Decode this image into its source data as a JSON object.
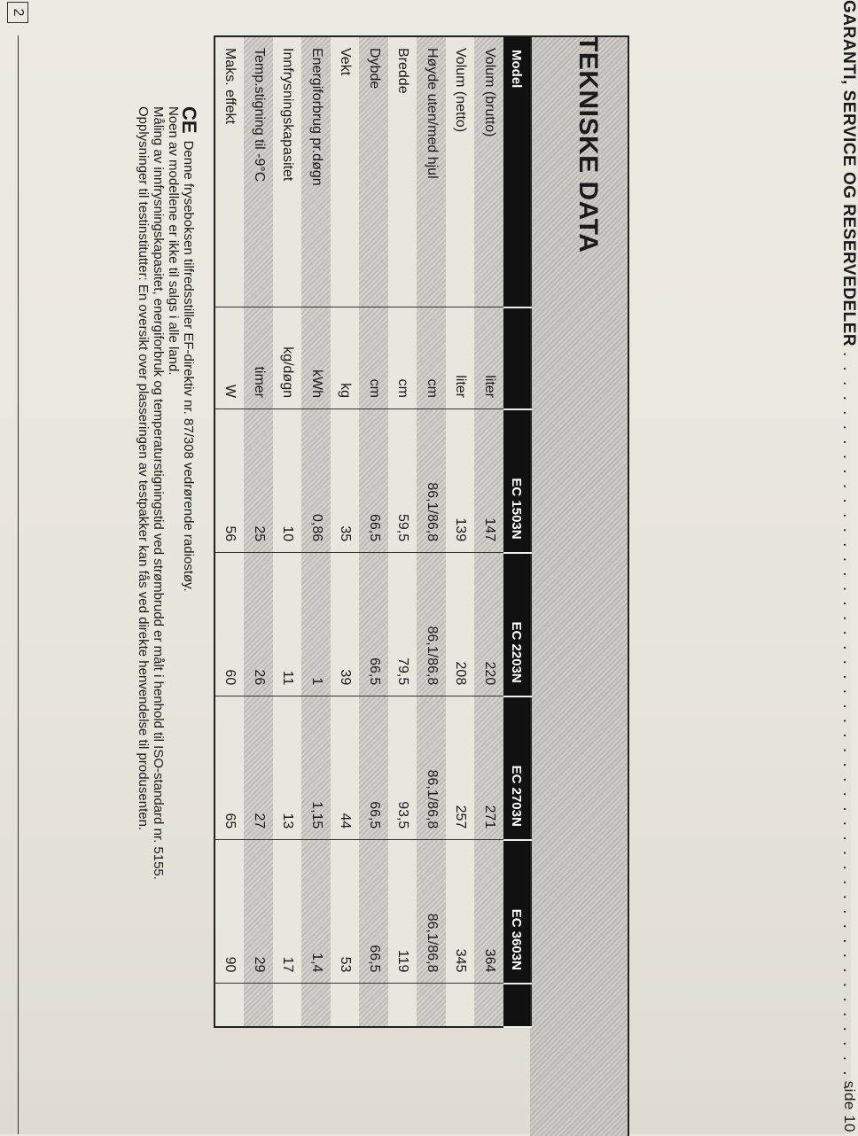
{
  "header": {
    "title": "GARANTI, SERVICE OG RESERVEDELER",
    "page_ref": "side 10"
  },
  "section_title": "TEKNISKE DATA",
  "table": {
    "columns": [
      "Model",
      "",
      "EC 1503N",
      "EC 2203N",
      "EC 2703N",
      "EC 3603N",
      ""
    ],
    "rows": [
      {
        "label": "Volum (brutto)",
        "unit": "liter",
        "values": [
          "147",
          "220",
          "271",
          "364"
        ]
      },
      {
        "label": "Volum (netto)",
        "unit": "liter",
        "values": [
          "139",
          "208",
          "257",
          "345"
        ]
      },
      {
        "label": "Høyde uten/med hjul",
        "unit": "cm",
        "values": [
          "86,1/86,8",
          "86,1/86,8",
          "86,1/86,8",
          "86,1/86,8"
        ]
      },
      {
        "label": "Bredde",
        "unit": "cm",
        "values": [
          "59,5",
          "79,5",
          "93,5",
          "119"
        ]
      },
      {
        "label": "Dybde",
        "unit": "cm",
        "values": [
          "66,5",
          "66,5",
          "66,5",
          "66,5"
        ]
      },
      {
        "label": "Vekt",
        "unit": "kg",
        "values": [
          "35",
          "39",
          "44",
          "53"
        ]
      },
      {
        "label": "Energiforbrug pr.døgn",
        "unit": "kWh",
        "values": [
          "0,86",
          "1",
          "1,15",
          "1,4"
        ]
      },
      {
        "label": "Innfrysningskapasitet",
        "unit": "kg/døgn",
        "values": [
          "10",
          "11",
          "13",
          "17"
        ]
      },
      {
        "label": "Temp.stigning til -9°C",
        "unit": "timer",
        "values": [
          "25",
          "26",
          "27",
          "29"
        ]
      },
      {
        "label": "Maks. effekt",
        "unit": "W",
        "values": [
          "56",
          "60",
          "65",
          "90"
        ]
      }
    ]
  },
  "notes": {
    "ce_mark": "CE",
    "lines": [
      "Denne fryseboksen tilfredsstiller EF-direktiv nr. 87/308 vedrørende radiostøy.",
      "Noen av modellene er ikke til salgs i alle land.",
      "Måling av innfrysningskapasitet, energiforbruk og temperaturstigningstid ved strømbrudd er målt i henhold til ISO-standard nr. 5155.",
      "Opplysninger til testinstitutter: En oversikt over plasseringen av testpakker kan fås ved direkte henvendelse til produsenten."
    ]
  },
  "page_number": "2"
}
